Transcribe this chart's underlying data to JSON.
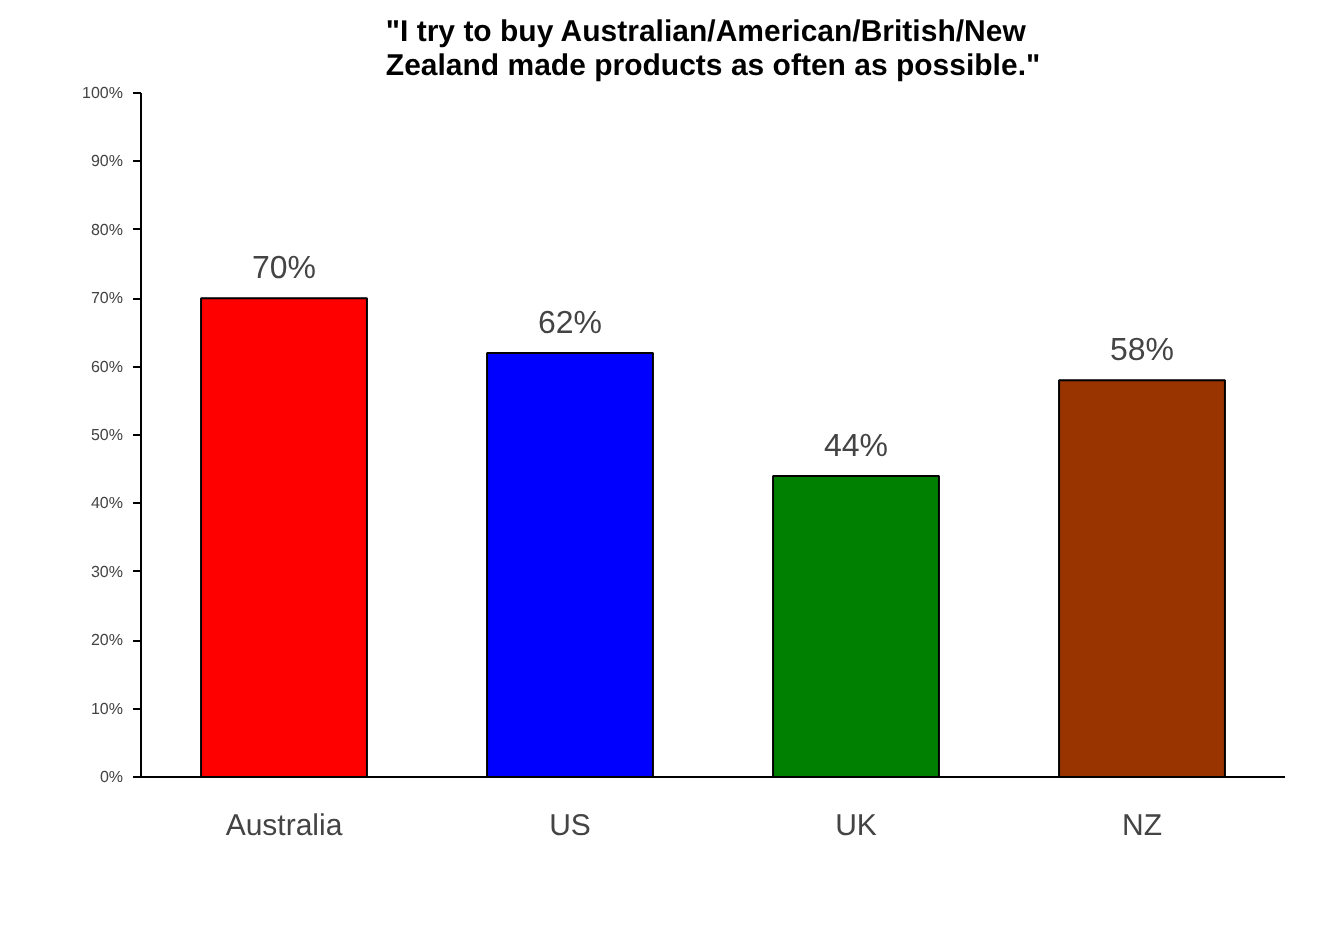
{
  "chart_data": {
    "type": "bar",
    "title": "\"I try to buy Australian/American/British/New Zealand made products as often as possible.\"",
    "categories": [
      "Australia",
      "US",
      "UK",
      "NZ"
    ],
    "values": [
      70,
      62,
      44,
      58
    ],
    "colors": [
      "#ff0000",
      "#0000ff",
      "#008000",
      "#993300"
    ],
    "value_labels": [
      "70%",
      "62%",
      "44%",
      "58%"
    ],
    "ylim": [
      0,
      100
    ],
    "yticks": [
      {
        "value": 0,
        "label": "0%"
      },
      {
        "value": 10,
        "label": "10%"
      },
      {
        "value": 20,
        "label": "20%"
      },
      {
        "value": 30,
        "label": "30%"
      },
      {
        "value": 40,
        "label": "40%"
      },
      {
        "value": 50,
        "label": "50%"
      },
      {
        "value": 60,
        "label": "60%"
      },
      {
        "value": 70,
        "label": "70%"
      },
      {
        "value": 80,
        "label": "80%"
      },
      {
        "value": 90,
        "label": "90%"
      },
      {
        "value": 100,
        "label": "100%"
      }
    ],
    "grid": false
  }
}
